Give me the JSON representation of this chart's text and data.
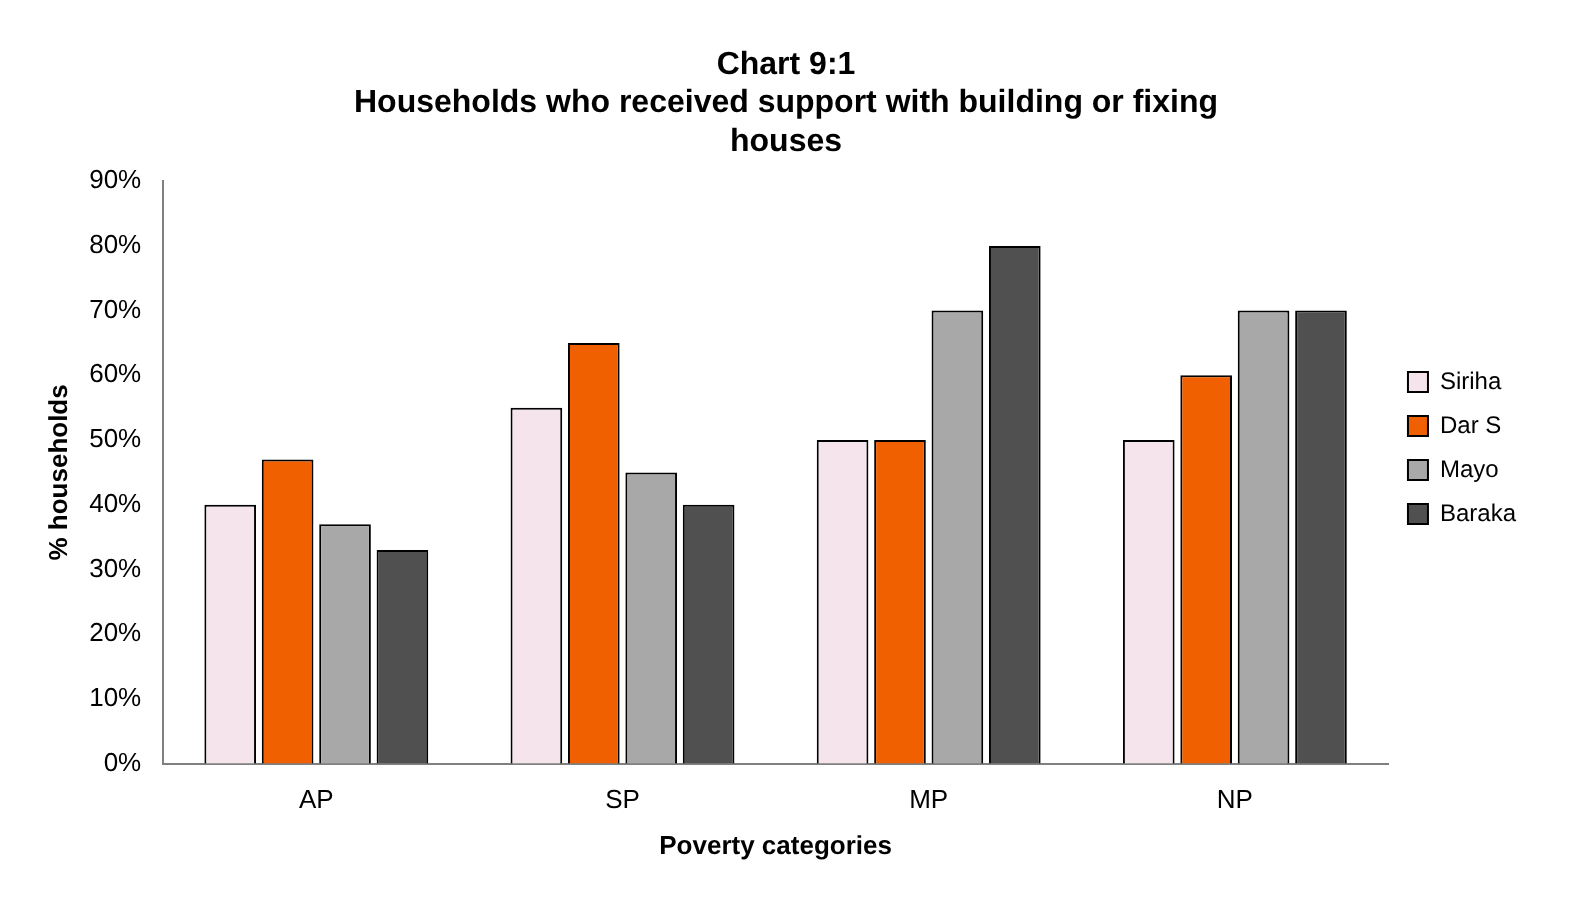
{
  "chart_data": {
    "type": "bar",
    "title": "Chart 9:1",
    "subtitle": "Households who received support with building or fixing houses",
    "xlabel": "Poverty categories",
    "ylabel": "% households",
    "categories": [
      "AP",
      "SP",
      "MP",
      "NP"
    ],
    "series": [
      {
        "name": "Siriha",
        "color": "#f6e4ec",
        "values": [
          40,
          55,
          50,
          50
        ]
      },
      {
        "name": "Dar S",
        "color": "#f06000",
        "values": [
          47,
          65,
          50,
          60
        ]
      },
      {
        "name": "Mayo",
        "color": "#a8a8a8",
        "values": [
          37,
          45,
          70,
          70
        ]
      },
      {
        "name": "Baraka",
        "color": "#505050",
        "values": [
          33,
          40,
          80,
          70
        ]
      }
    ],
    "ylim": [
      0,
      90
    ],
    "yticks": [
      {
        "value": 0,
        "label": "0%"
      },
      {
        "value": 10,
        "label": "10%"
      },
      {
        "value": 20,
        "label": "20%"
      },
      {
        "value": 30,
        "label": "30%"
      },
      {
        "value": 40,
        "label": "40%"
      },
      {
        "value": 50,
        "label": "50%"
      },
      {
        "value": 60,
        "label": "60%"
      },
      {
        "value": 70,
        "label": "70%"
      },
      {
        "value": 80,
        "label": "80%"
      },
      {
        "value": 90,
        "label": "90%"
      }
    ],
    "grid": false,
    "legend": "right"
  }
}
